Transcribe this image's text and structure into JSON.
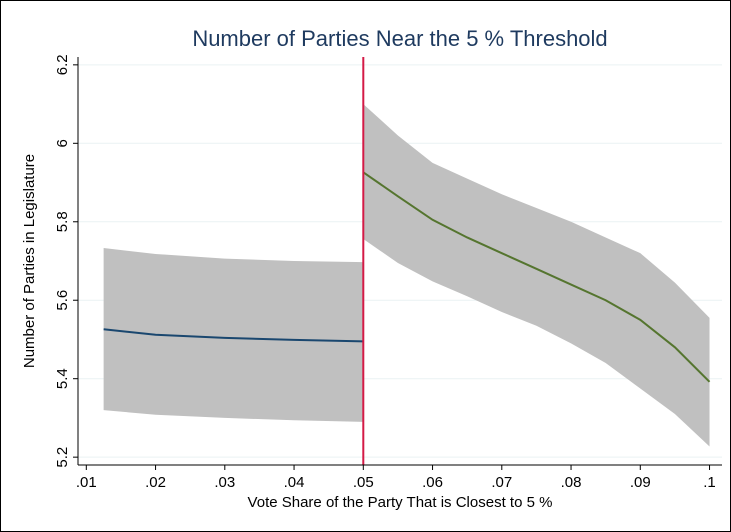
{
  "chart_data": {
    "type": "line",
    "title": "Number of Parties Near the 5 % Threshold",
    "x_label": "Vote Share of the Party That is Closest to 5 %",
    "y_label": "Number  of  Parties  in Legislature",
    "xlim": [
      0.0088,
      0.1018
    ],
    "ylim": [
      5.18,
      6.22
    ],
    "xticks": [
      {
        "value": 0.01,
        "label": ".01"
      },
      {
        "value": 0.02,
        "label": ".02"
      },
      {
        "value": 0.03,
        "label": ".03"
      },
      {
        "value": 0.04,
        "label": ".04"
      },
      {
        "value": 0.05,
        "label": ".05"
      },
      {
        "value": 0.06,
        "label": ".06"
      },
      {
        "value": 0.07,
        "label": ".07"
      },
      {
        "value": 0.08,
        "label": ".08"
      },
      {
        "value": 0.09,
        "label": ".09"
      },
      {
        "value": 0.1,
        "label": ".1"
      }
    ],
    "yticks": [
      5.2,
      5.4,
      5.6,
      5.8,
      6,
      6.2
    ],
    "grid": true,
    "band_color": "#c0c0c0",
    "vline": {
      "value": 0.05,
      "color": "#d41a46"
    },
    "series": [
      {
        "color": "#1a476f",
        "x": [
          0.0125,
          0.02,
          0.03,
          0.04,
          0.05
        ],
        "values": [
          5.526,
          5.512,
          5.504,
          5.499,
          5.495
        ],
        "ci_upper": [
          5.733,
          5.718,
          5.706,
          5.7,
          5.697
        ],
        "ci_lower": [
          5.32,
          5.308,
          5.3,
          5.294,
          5.29
        ]
      },
      {
        "color": "#55752f",
        "x": [
          0.05,
          0.055,
          0.06,
          0.065,
          0.07,
          0.075,
          0.08,
          0.085,
          0.09,
          0.095,
          0.1
        ],
        "values": [
          5.926,
          5.865,
          5.805,
          5.76,
          5.72,
          5.68,
          5.64,
          5.6,
          5.55,
          5.48,
          5.392
        ],
        "ci_upper": [
          6.1,
          6.02,
          5.95,
          5.91,
          5.87,
          5.835,
          5.8,
          5.76,
          5.72,
          5.645,
          5.555
        ],
        "ci_lower": [
          5.756,
          5.695,
          5.648,
          5.61,
          5.57,
          5.535,
          5.49,
          5.44,
          5.375,
          5.31,
          5.227
        ]
      }
    ]
  }
}
